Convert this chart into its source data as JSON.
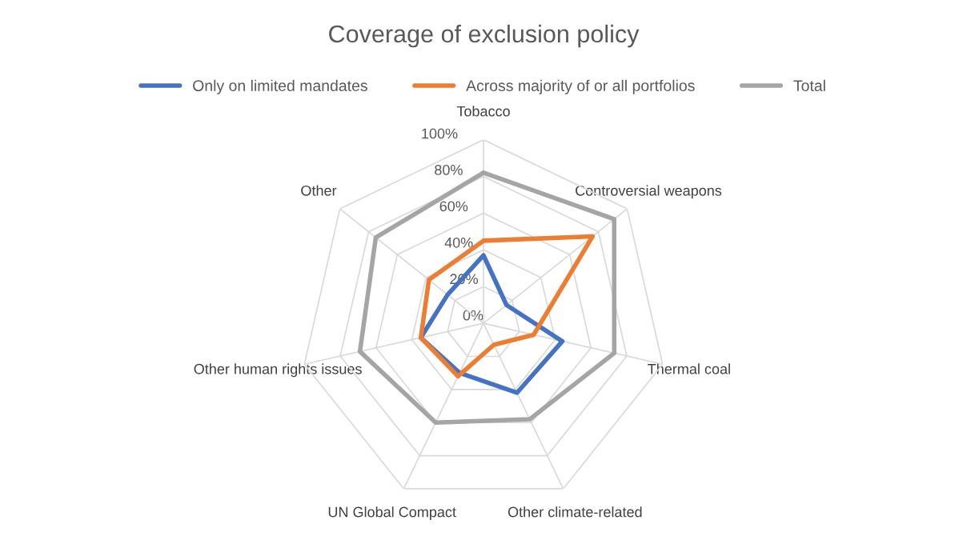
{
  "chart_data": {
    "type": "radar",
    "title": "Coverage of exclusion policy",
    "categories": [
      "Tobacco",
      "Controversial weapons",
      "Thermal coal",
      "Other climate-related",
      "UN Global Compact",
      "Other human rights issues",
      "Other"
    ],
    "series": [
      {
        "name": "Only on limited mandates",
        "color": "#4472c4",
        "values": [
          37,
          16,
          44,
          42,
          30,
          35,
          25
        ]
      },
      {
        "name": "Across majority of or all portfolios",
        "color": "#ed7d31",
        "values": [
          45,
          76,
          28,
          13,
          32,
          35,
          38
        ]
      },
      {
        "name": "Total",
        "color": "#a5a5a5",
        "values": [
          82,
          91,
          73,
          58,
          60,
          69,
          75
        ]
      }
    ],
    "ylim": [
      0,
      100
    ],
    "yticks": [
      {
        "value": 0,
        "label": "0%"
      },
      {
        "value": 20,
        "label": "20%"
      },
      {
        "value": 40,
        "label": "40%"
      },
      {
        "value": 60,
        "label": "60%"
      },
      {
        "value": 80,
        "label": "80%"
      },
      {
        "value": 100,
        "label": "100%"
      }
    ],
    "grid": true,
    "legend": "top",
    "marker": "none",
    "line_style": "solid"
  }
}
